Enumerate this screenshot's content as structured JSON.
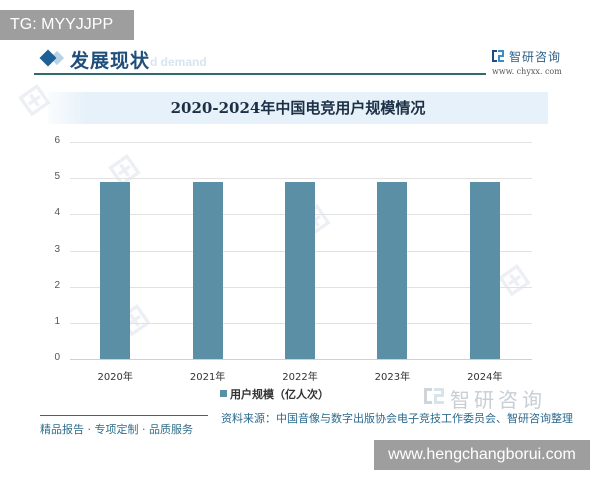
{
  "overlay": {
    "tg_badge": "TG: MYYJJPP",
    "site_badge": "www.hengchangborui.com"
  },
  "header": {
    "section_title": "发展现状",
    "section_ghost_text": "d demand",
    "brand_name": "智研咨询",
    "brand_url": "www. chyxx. com",
    "icon": "diamond-bullet-icon"
  },
  "colors": {
    "bar": "#5b8fa6",
    "title_text": "#1f4e7a",
    "banner_bg": "#e6f1f9",
    "rule": "#2f6b6b",
    "source_text": "#2a6a8e"
  },
  "chart_data": {
    "type": "bar",
    "title": "2020-2024年中国电竞用户规模情况",
    "categories": [
      "2020年",
      "2021年",
      "2022年",
      "2023年",
      "2024年"
    ],
    "series": [
      {
        "name": "用户规模（亿人次）",
        "values": [
          4.9,
          4.9,
          4.9,
          4.9,
          4.9
        ]
      }
    ],
    "xlabel": "",
    "ylabel": "",
    "ylim": [
      0,
      6
    ],
    "yticks": [
      0,
      1,
      2,
      3,
      4,
      5,
      6
    ],
    "grid": true,
    "legend_position": "bottom"
  },
  "legend": {
    "label": "用户规模（亿人次）"
  },
  "footer": {
    "slogan": "精品报告 · 专项定制 · 品质服务",
    "source": "资料来源：中国音像与数字出版协会电子竞技工作委员会、智研咨询整理",
    "watermark_logo": "智研咨询"
  }
}
